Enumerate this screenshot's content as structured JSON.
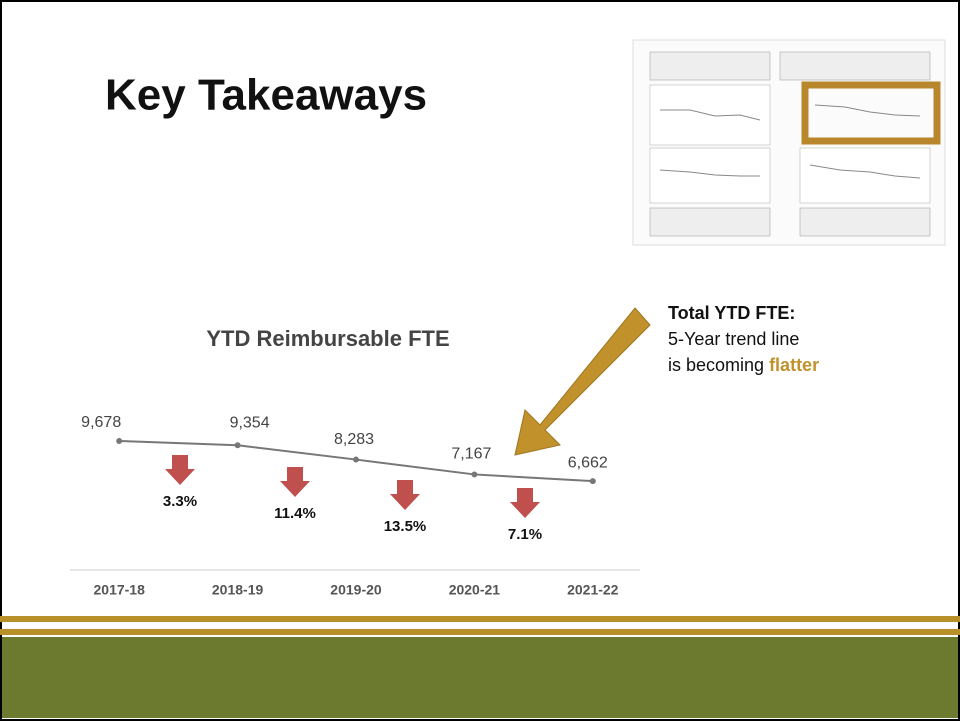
{
  "slide": {
    "title": "Key Takeaways",
    "note": {
      "heading": "Total YTD FTE:",
      "lines": [
        "5-Year trend line",
        "is becoming"
      ],
      "highlight": "flatter"
    }
  },
  "chart_data": {
    "type": "line",
    "title": "YTD Reimbursable FTE",
    "categories": [
      "2017-18",
      "2018-19",
      "2019-20",
      "2020-21",
      "2021-22"
    ],
    "values": [
      9678,
      9354,
      8283,
      7167,
      6662
    ],
    "value_labels": [
      "9,678",
      "9,354",
      "8,283",
      "7,167",
      "6,662"
    ],
    "color": "#777777",
    "ylim": [
      0,
      12000
    ],
    "annotations": [
      "3.3%",
      "11.4%",
      "13.5%",
      "7.1%"
    ],
    "annotation_color": "#c0504d"
  }
}
